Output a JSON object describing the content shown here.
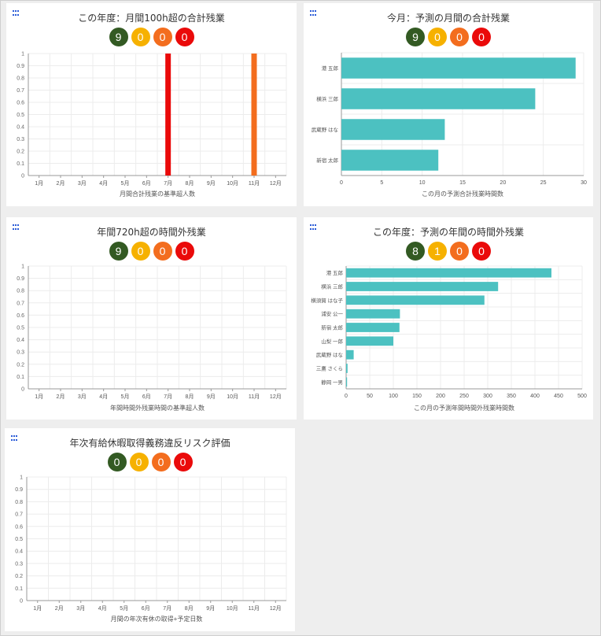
{
  "colors": {
    "green": "#335a23",
    "yellow": "#f6b100",
    "orange": "#f36d1e",
    "red": "#ea0a0a",
    "teal": "#4cc1c1"
  },
  "panels": [
    {
      "id": "p1",
      "title": "この年度：月間100h超の合計残業",
      "badges": [
        "9",
        "0",
        "0",
        "0"
      ]
    },
    {
      "id": "p2",
      "title": "今月：予測の月間の合計残業",
      "badges": [
        "9",
        "0",
        "0",
        "0"
      ]
    },
    {
      "id": "p3",
      "title": "年間720h超の時間外残業",
      "badges": [
        "9",
        "0",
        "0",
        "0"
      ]
    },
    {
      "id": "p4",
      "title": "この年度：予測の年間の時間外残業",
      "badges": [
        "8",
        "1",
        "0",
        "0"
      ]
    },
    {
      "id": "p5",
      "title": "年次有給休暇取得義務違反リスク評価",
      "badges": [
        "0",
        "0",
        "0",
        "0"
      ]
    }
  ],
  "chart_data": [
    {
      "type": "bar",
      "panel": "p1",
      "categories": [
        "1月",
        "2月",
        "3月",
        "4月",
        "5月",
        "6月",
        "7月",
        "8月",
        "9月",
        "10月",
        "11月",
        "12月"
      ],
      "series": [
        {
          "values": [
            0,
            0,
            0,
            0,
            0,
            0,
            1,
            0,
            0,
            0,
            0,
            0
          ],
          "color": "#ea0a0a"
        },
        {
          "values": [
            0,
            0,
            0,
            0,
            0,
            0,
            0,
            0,
            0,
            0,
            1,
            0
          ],
          "color": "#f36d1e"
        }
      ],
      "xlabel": "月間合計残業の基準超人数",
      "ylim": [
        0,
        1
      ],
      "yticks": [
        "0",
        "0.1",
        "0.2",
        "0.3",
        "0.4",
        "0.5",
        "0.6",
        "0.7",
        "0.8",
        "0.9",
        "1"
      ]
    },
    {
      "type": "bar",
      "orientation": "horizontal",
      "panel": "p2",
      "categories": [
        "港 五郎",
        "横浜 三郎",
        "武蔵野 はな",
        "新宿 太郎"
      ],
      "values": [
        29,
        24,
        12.8,
        12
      ],
      "xlabel": "この月の予測合計残業時間数",
      "xlim": [
        0,
        30
      ],
      "xticks": [
        "0",
        "5",
        "10",
        "15",
        "20",
        "25",
        "30"
      ]
    },
    {
      "type": "bar",
      "panel": "p3",
      "categories": [
        "1月",
        "2月",
        "3月",
        "4月",
        "5月",
        "6月",
        "7月",
        "8月",
        "9月",
        "10月",
        "11月",
        "12月"
      ],
      "values": [
        0,
        0,
        0,
        0,
        0,
        0,
        0,
        0,
        0,
        0,
        0,
        0
      ],
      "xlabel": "年間時間外残業時間の基準超人数",
      "ylim": [
        0,
        1
      ],
      "yticks": [
        "0",
        "0.1",
        "0.2",
        "0.3",
        "0.4",
        "0.5",
        "0.6",
        "0.7",
        "0.8",
        "0.9",
        "1"
      ]
    },
    {
      "type": "bar",
      "orientation": "horizontal",
      "panel": "p4",
      "categories": [
        "港 五郎",
        "横浜 三郎",
        "横須賀 はな子",
        "浦安 公一",
        "新宿 太郎",
        "山梨 一郎",
        "武蔵野 はな",
        "三鷹 さくら",
        "静岡 一男"
      ],
      "values": [
        435,
        322,
        293,
        114,
        113,
        100,
        16,
        3,
        2
      ],
      "xlabel": "この月の予測年間時間外残業時間数",
      "xlim": [
        0,
        500
      ],
      "xticks": [
        "0",
        "50",
        "100",
        "150",
        "200",
        "250",
        "300",
        "350",
        "400",
        "450",
        "500"
      ]
    },
    {
      "type": "bar",
      "panel": "p5",
      "categories": [
        "1月",
        "2月",
        "3月",
        "4月",
        "5月",
        "6月",
        "7月",
        "8月",
        "9月",
        "10月",
        "11月",
        "12月"
      ],
      "values": [
        0,
        0,
        0,
        0,
        0,
        0,
        0,
        0,
        0,
        0,
        0,
        0
      ],
      "xlabel": "月間の年次有休の取得+予定日数",
      "ylim": [
        0,
        1
      ],
      "yticks": [
        "0",
        "0.1",
        "0.2",
        "0.3",
        "0.4",
        "0.5",
        "0.6",
        "0.7",
        "0.8",
        "0.9",
        "1"
      ]
    }
  ]
}
